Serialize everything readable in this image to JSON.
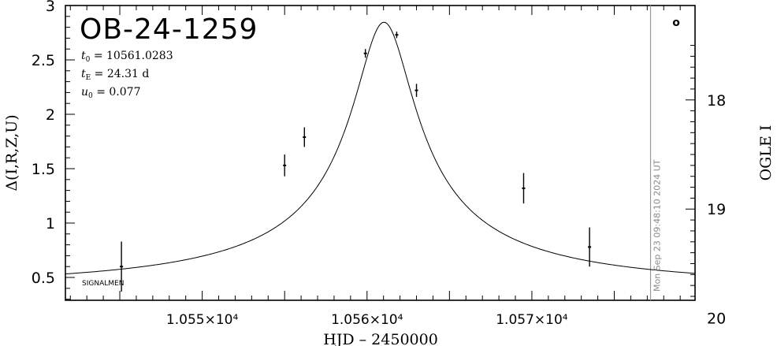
{
  "chart_data": {
    "type": "scatter",
    "title": "OB-24-1259",
    "params": [
      {
        "sym": "t",
        "sub": "0",
        "text": " = 10561.0283"
      },
      {
        "sym": "t",
        "sub": "E",
        "text": " = 24.31 d"
      },
      {
        "sym": "u",
        "sub": "0",
        "text": " = 0.077"
      }
    ],
    "corner_label": "SIGNALMEN",
    "xlabel": "HJD – 2450000",
    "ylabel": "Δ(I,R,Z,U)",
    "ylabel_right": "OGLE I",
    "xlim": [
      10541.7,
      10579.9
    ],
    "ylim": [
      0.29,
      3.0
    ],
    "x_ticks": [
      {
        "value": 10550,
        "label": "1.055×10⁴"
      },
      {
        "value": 10560,
        "label": "1.056×10⁴"
      },
      {
        "value": 10570,
        "label": "1.057×10⁴"
      }
    ],
    "y_ticks": [
      {
        "value": 0.5,
        "label": "0.5"
      },
      {
        "value": 1,
        "label": "1"
      },
      {
        "value": 1.5,
        "label": "1.5"
      },
      {
        "value": 2,
        "label": "2"
      },
      {
        "value": 2.5,
        "label": "2.5"
      },
      {
        "value": 3,
        "label": "3"
      }
    ],
    "right_ticks": [
      {
        "mag": 18,
        "label": "18"
      },
      {
        "mag": 19,
        "label": "19"
      },
      {
        "mag": 20,
        "label": "20"
      }
    ],
    "mag_scale": {
      "base_mag": 20.125,
      "per_unit_delta": 0.9967
    },
    "model": {
      "t0": 10561.0283,
      "tE": 24.31,
      "u0": 0.077,
      "baseline": 0.425,
      "amplitude": 0.2015
    },
    "points": [
      {
        "x": 10545.1,
        "y": 0.6,
        "err": 0.23
      },
      {
        "x": 10555.0,
        "y": 1.53,
        "err": 0.1
      },
      {
        "x": 10556.2,
        "y": 1.79,
        "err": 0.09
      },
      {
        "x": 10559.9,
        "y": 2.56,
        "err": 0.04
      },
      {
        "x": 10561.8,
        "y": 2.73,
        "err": 0.03
      },
      {
        "x": 10563.0,
        "y": 2.22,
        "err": 0.06
      },
      {
        "x": 10569.5,
        "y": 1.32,
        "err": 0.14
      },
      {
        "x": 10573.5,
        "y": 0.78,
        "err": 0.18
      }
    ],
    "timestamp": "Mon Sep 23 09:48:10 2024 UT",
    "timestamp_x": 10577.2,
    "marker_symbol": "o"
  }
}
